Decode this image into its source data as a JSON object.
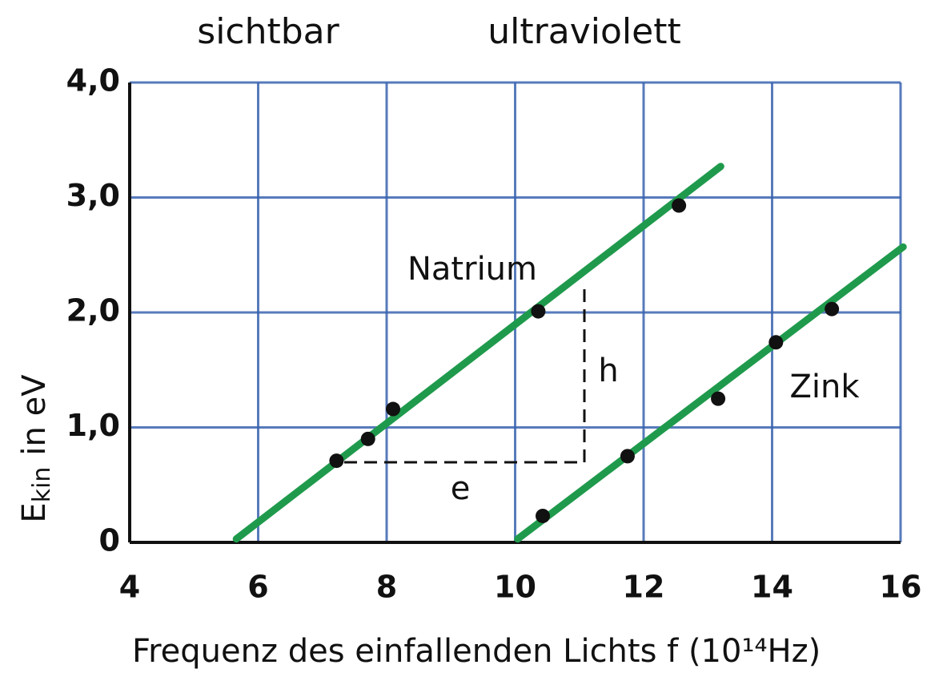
{
  "chart_data": {
    "type": "scatter",
    "annotations": [
      "sichtbar",
      "ultraviolett",
      "e",
      "h"
    ],
    "x_label": "Frequenz des einfallenden Lichts f (10¹⁴Hz)",
    "y_label": {
      "symbol": "E",
      "subscript": "kin",
      "unit": "in eV"
    },
    "xlim": [
      4,
      16
    ],
    "ylim": [
      0,
      4
    ],
    "xticks": [
      4,
      6,
      8,
      10,
      12,
      14,
      16
    ],
    "yticks": [
      0,
      {
        "value": 1,
        "label": "1,0"
      },
      {
        "value": 2,
        "label": "2,0"
      },
      {
        "value": 3,
        "label": "3,0"
      },
      {
        "value": 4,
        "label": "4,0"
      }
    ],
    "grid": true,
    "grid_color": "#3a64b0",
    "series": [
      {
        "name": "Natrium",
        "color": "#111111",
        "x": [
          7.22,
          7.71,
          8.1,
          10.36,
          12.55
        ],
        "values": [
          0.71,
          0.9,
          1.16,
          2.01,
          2.93
        ],
        "fit": {
          "color": "#1f9a4c",
          "x": [
            5.66,
            13.2
          ],
          "values": [
            0.03,
            3.27
          ]
        }
      },
      {
        "name": "Zink",
        "color": "#111111",
        "x": [
          10.43,
          11.75,
          13.16,
          14.06,
          14.93
        ],
        "values": [
          0.23,
          0.75,
          1.25,
          1.74,
          2.03
        ],
        "fit": {
          "color": "#1f9a4c",
          "x": [
            10.04,
            16.04
          ],
          "values": [
            0.03,
            2.57
          ]
        }
      }
    ]
  }
}
